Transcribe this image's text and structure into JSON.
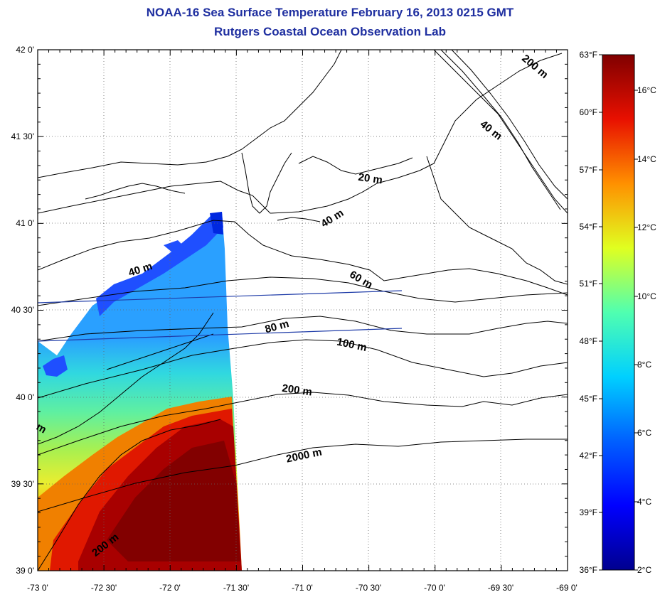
{
  "title": "NOAA-16 Sea Surface Temperature February 16, 2013 0215 GMT",
  "subtitle": "Rutgers Coastal Ocean Observation Lab",
  "map": {
    "lon_ticks": [
      "-73 0'",
      "-72 30'",
      "-72 0'",
      "-71 30'",
      "-71 0'",
      "-70 30'",
      "-70 0'",
      "-69 30'",
      "-69 0'"
    ],
    "lat_ticks": [
      "42 0'",
      "41 30'",
      "41 0'",
      "40 30'",
      "40 0'",
      "39 30'",
      "39 0'"
    ],
    "lon_range": [
      -73,
      -69
    ],
    "lat_range": [
      39,
      42
    ],
    "grid": "dotted",
    "contour_labels": [
      "200 m",
      "40 m",
      "20 m",
      "40 m",
      "40 m",
      "60 m",
      "80 m",
      "100 m",
      "200 m",
      "2000 m",
      "200 m",
      "m"
    ]
  },
  "colorbar": {
    "fahrenheit_ticks": [
      "63°F",
      "60°F",
      "57°F",
      "54°F",
      "51°F",
      "48°F",
      "45°F",
      "42°F",
      "39°F",
      "36°F"
    ],
    "celsius_ticks": [
      "16°C",
      "14°C",
      "12°C",
      "10°C",
      "8°C",
      "6°C",
      "4°C",
      "2°C"
    ],
    "range_f": [
      36,
      63
    ],
    "range_c": [
      2,
      17
    ]
  },
  "colors": {
    "title": "#1f2fa0",
    "coastline": "#000000",
    "track_lines": "#1f3ca8"
  }
}
